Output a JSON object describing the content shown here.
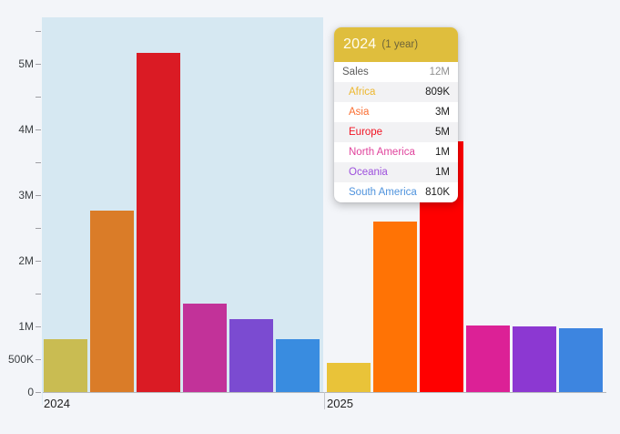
{
  "page": {
    "background": "#f3f5f9"
  },
  "axis": {
    "line_color": "#b6b9bd",
    "tick_color": "#9e9ea4",
    "label_color": "#3c4043",
    "separator_tick_color": "#c4c7cc",
    "band_edge_tick_color": "#dcebf4"
  },
  "chart_data": {
    "type": "bar",
    "title": "",
    "xlabel": "",
    "ylabel": "",
    "categories": [
      "2024",
      "2025"
    ],
    "series": [
      {
        "name": "Africa",
        "values": [
          809000,
          440000
        ],
        "colors": [
          "#c9bc52",
          "#e9c339"
        ]
      },
      {
        "name": "Asia",
        "values": [
          2770000,
          2600000
        ],
        "colors": [
          "#da7c28",
          "#ff7305"
        ]
      },
      {
        "name": "Europe",
        "values": [
          5170000,
          3820000
        ],
        "colors": [
          "#da1b24",
          "#ff0000"
        ]
      },
      {
        "name": "North America",
        "values": [
          1350000,
          1010000
        ],
        "colors": [
          "#c23299",
          "#dc2196"
        ]
      },
      {
        "name": "Oceania",
        "values": [
          1110000,
          1000000
        ],
        "colors": [
          "#7b4bd1",
          "#8c38d2"
        ]
      },
      {
        "name": "South America",
        "values": [
          810000,
          970000
        ],
        "colors": [
          "#398ce0",
          "#3d85e0"
        ]
      }
    ],
    "ylim": [
      0,
      5700000
    ],
    "y_ticks": [
      {
        "value": 0,
        "label": "0"
      },
      {
        "value": 500000,
        "label": "500K"
      },
      {
        "value": 1000000,
        "label": "1M"
      },
      {
        "value": 1500000,
        "label": ""
      },
      {
        "value": 2000000,
        "label": "2M"
      },
      {
        "value": 2500000,
        "label": ""
      },
      {
        "value": 3000000,
        "label": "3M"
      },
      {
        "value": 3500000,
        "label": ""
      },
      {
        "value": 4000000,
        "label": "4M"
      },
      {
        "value": 4500000,
        "label": ""
      },
      {
        "value": 5000000,
        "label": "5M"
      },
      {
        "value": 5500000,
        "label": ""
      }
    ],
    "grid": false,
    "legend": false,
    "highlighted_category": "2024",
    "highlight_band_color": "#d6e8f2"
  },
  "tooltip": {
    "title": "2024",
    "subtitle": "(1 year)",
    "header_color": "#dfbe3d",
    "rows": [
      {
        "label": "Sales",
        "value": "12M",
        "label_color": "#5c5c5c",
        "value_color": "#8f8f8f"
      },
      {
        "label": "Africa",
        "value": "809K",
        "label_color": "#edb72d",
        "value_color": "#1b1b1b"
      },
      {
        "label": "Asia",
        "value": "3M",
        "label_color": "#fa6e32",
        "value_color": "#1b1b1b"
      },
      {
        "label": "Europe",
        "value": "5M",
        "label_color": "#f21524",
        "value_color": "#1b1b1b"
      },
      {
        "label": "North America",
        "value": "1M",
        "label_color": "#e0439c",
        "value_color": "#1b1b1b"
      },
      {
        "label": "Oceania",
        "value": "1M",
        "label_color": "#9d50dd",
        "value_color": "#1b1b1b"
      },
      {
        "label": "South America",
        "value": "810K",
        "label_color": "#4f93dd",
        "value_color": "#1b1b1b"
      }
    ]
  }
}
